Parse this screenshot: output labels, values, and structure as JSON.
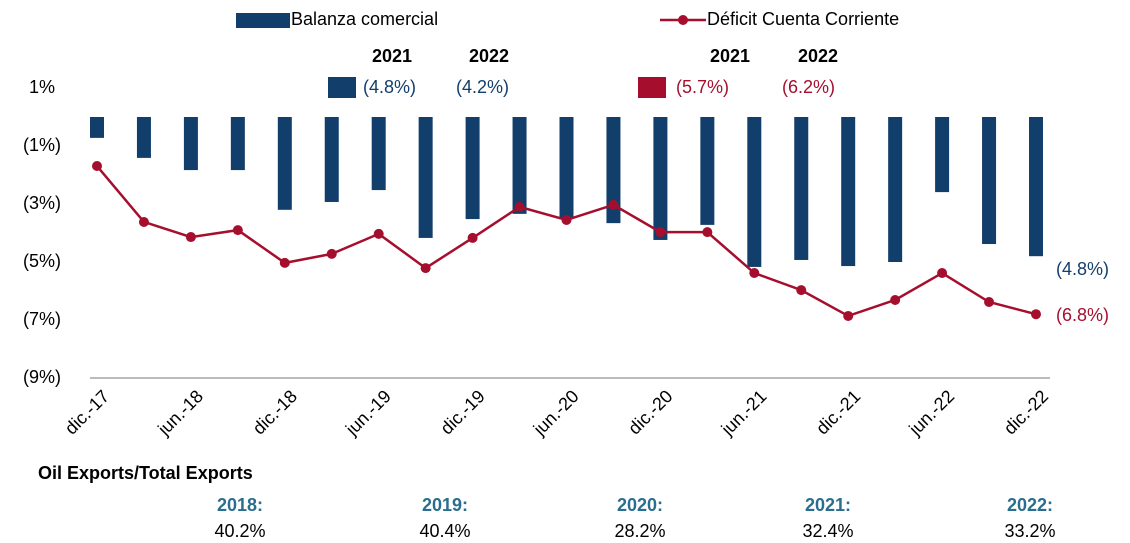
{
  "chart_data": {
    "type": "bar_line",
    "categories": [
      "dic.-17",
      null,
      "jun.-18",
      null,
      "dic.-18",
      null,
      "jun.-19",
      null,
      "dic.-19",
      null,
      "jun.-20",
      null,
      "dic.-20",
      null,
      "jun.-21",
      null,
      "dic.-21",
      null,
      "jun.-22",
      null,
      "dic.-22"
    ],
    "series": [
      {
        "name": "Balanza comercial",
        "color": "#123e6b",
        "kind": "bar",
        "values": [
          -0.72,
          -1.41,
          -1.83,
          -1.83,
          -3.2,
          -2.93,
          -2.52,
          -4.17,
          -3.52,
          -3.34,
          -3.48,
          -3.66,
          -4.24,
          -3.72,
          -5.17,
          -4.93,
          -5.14,
          -5.0,
          -2.59,
          -4.38,
          -4.8
        ],
        "value_labels": [
          null,
          null,
          null,
          null,
          null,
          null,
          null,
          null,
          null,
          null,
          null,
          null,
          null,
          null,
          null,
          null,
          null,
          null,
          null,
          null,
          "(4.8%)"
        ]
      },
      {
        "name": "Déficit Cuenta Corriente",
        "color": "#a50f2d",
        "kind": "line",
        "values": [
          -1.69,
          -3.62,
          -4.14,
          -3.9,
          -5.03,
          -4.72,
          -4.03,
          -5.21,
          -4.17,
          -3.1,
          -3.55,
          -3.03,
          -3.97,
          -3.97,
          -5.38,
          -5.97,
          -6.86,
          -6.31,
          -5.38,
          -6.38,
          -6.8
        ],
        "value_labels": [
          null,
          null,
          null,
          null,
          null,
          null,
          null,
          null,
          null,
          null,
          null,
          null,
          null,
          null,
          null,
          null,
          null,
          null,
          null,
          null,
          "(6.8%)"
        ]
      }
    ],
    "ylim": [
      -9,
      1
    ],
    "yticks": [
      {
        "value": 1,
        "label": "1%"
      },
      {
        "value": -1,
        "label": "(1%)"
      },
      {
        "value": -3,
        "label": "(3%)"
      },
      {
        "value": -5,
        "label": "(5%)"
      },
      {
        "value": -7,
        "label": "(7%)"
      },
      {
        "value": -9,
        "label": "(9%)"
      }
    ],
    "annual": {
      "years": [
        "2021",
        "2022"
      ],
      "balanza": [
        "(4.8%)",
        "(4.2%)"
      ],
      "deficit": [
        "(5.7%)",
        "(6.2%)"
      ]
    },
    "oil": {
      "title": "Oil Exports/Total Exports",
      "years": [
        "2018:",
        "2019:",
        "2020:",
        "2021:",
        "2022:"
      ],
      "values": [
        "40.2%",
        "40.4%",
        "28.2%",
        "32.4%",
        "33.2%"
      ]
    }
  }
}
